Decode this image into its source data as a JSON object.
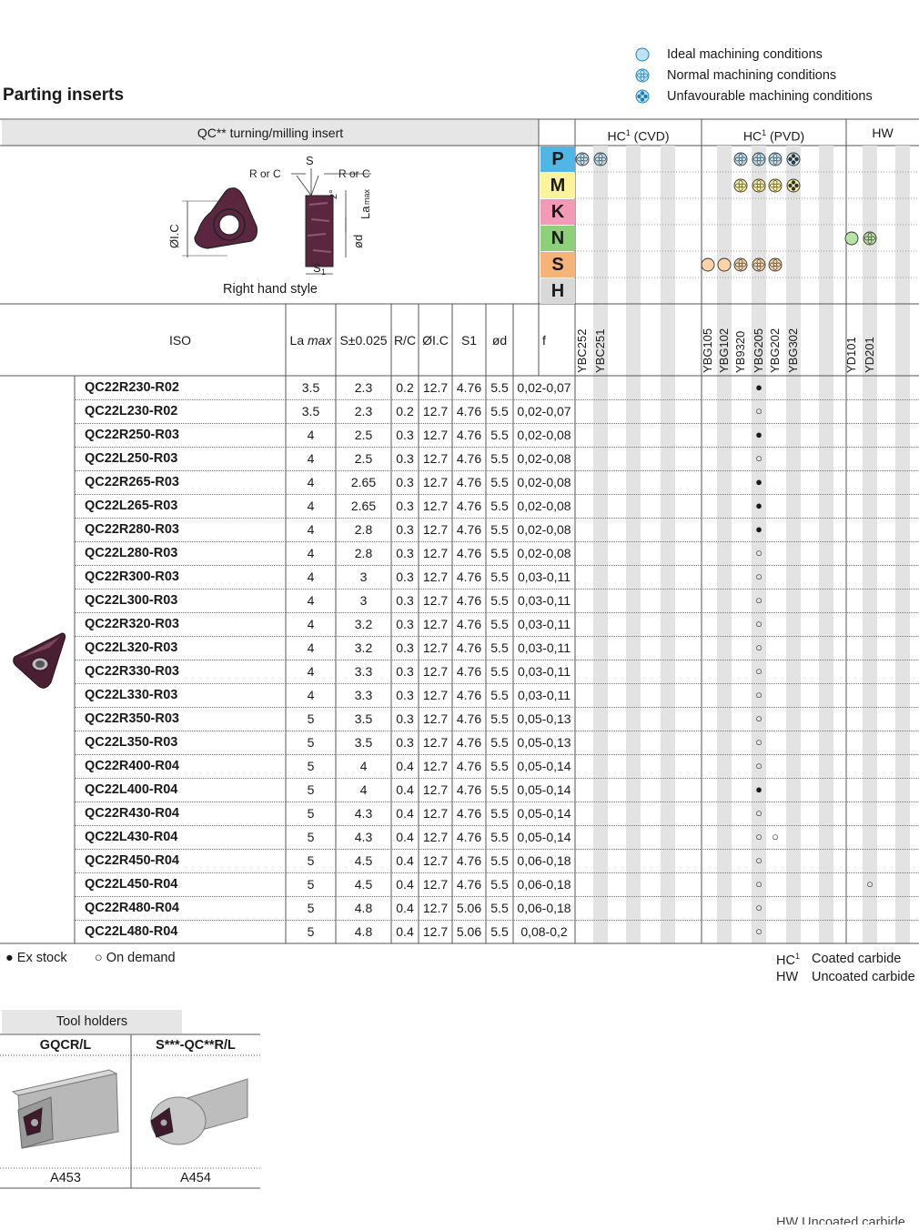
{
  "legend": {
    "ideal": "Ideal machining conditions",
    "normal": "Normal machining conditions",
    "unfavourable": "Unfavourable machining conditions"
  },
  "title": "Parting inserts",
  "insert_header": "QC** turning/milling insert",
  "diagram": {
    "caption": "Right hand style",
    "labels": {
      "s": "S",
      "r_or_c_left": "R or C",
      "r_or_c_right": "R or C",
      "angle": "2°",
      "la": "La",
      "la_sub": "max",
      "od": "ød",
      "ic": "ØI.C",
      "s1": "S",
      "s1_sub": "1"
    }
  },
  "groups": [
    {
      "label": "HC",
      "sup": "1",
      "suffix": " (CVD)"
    },
    {
      "label": "HC",
      "sup": "1",
      "suffix": " (PVD)"
    },
    {
      "label": "HW",
      "sup": "",
      "suffix": ""
    }
  ],
  "materials": [
    {
      "letter": "P",
      "color": "#4fb6e6"
    },
    {
      "letter": "M",
      "color": "#fdf39a"
    },
    {
      "letter": "K",
      "color": "#f49ab7"
    },
    {
      "letter": "N",
      "color": "#8ecf7a"
    },
    {
      "letter": "S",
      "color": "#f5b37a"
    },
    {
      "letter": "H",
      "color": "#d9d9d9"
    }
  ],
  "material_marks": {
    "P": [
      {
        "col": 0,
        "sym": "normal",
        "c": "#bfe3f5"
      },
      {
        "col": 1,
        "sym": "normal",
        "c": "#bfe3f5"
      },
      {
        "col": 9,
        "sym": "normal",
        "c": "#bfe3f5"
      },
      {
        "col": 10,
        "sym": "normal",
        "c": "#bfe3f5"
      },
      {
        "col": 11,
        "sym": "normal",
        "c": "#bfe3f5"
      },
      {
        "col": 12,
        "sym": "unfav",
        "c": "#bfe3f5"
      }
    ],
    "M": [
      {
        "col": 9,
        "sym": "normal",
        "c": "#fdf39a"
      },
      {
        "col": 10,
        "sym": "normal",
        "c": "#fdf39a"
      },
      {
        "col": 11,
        "sym": "normal",
        "c": "#fdf39a"
      },
      {
        "col": 12,
        "sym": "unfav",
        "c": "#fdf39a"
      }
    ],
    "N": [
      {
        "col": 15,
        "sym": "ideal",
        "c": "#b7e3a5"
      },
      {
        "col": 16,
        "sym": "normal",
        "c": "#b7e3a5"
      }
    ],
    "S": [
      {
        "col": 7,
        "sym": "ideal",
        "c": "#fbd3a8"
      },
      {
        "col": 8,
        "sym": "ideal",
        "c": "#fbd3a8"
      },
      {
        "col": 9,
        "sym": "normal",
        "c": "#fbd3a8"
      },
      {
        "col": 10,
        "sym": "normal",
        "c": "#fbd3a8"
      },
      {
        "col": 11,
        "sym": "normal",
        "c": "#fbd3a8"
      }
    ]
  },
  "columns": {
    "iso": "ISO",
    "la": "La ",
    "la_em": "max",
    "s": "S±0.025",
    "rc": "R/C",
    "ic": "ØI.C",
    "s1": "S1",
    "od": "ød",
    "f": "f"
  },
  "grades": {
    "cvd": [
      "YBC252",
      "YBC251"
    ],
    "pvd": [
      "YBG105",
      "YBG102",
      "YB9320",
      "YBG205",
      "YBG202",
      "YBG302"
    ],
    "hw": [
      "YD101",
      "YD201"
    ]
  },
  "rows": [
    {
      "code": "QC22R230-R02",
      "la": "3.5",
      "s": "2.3",
      "rc": "0.2",
      "ic": "12.7",
      "s1": "4.76",
      "od": "5.5",
      "f": "0,02-0,07",
      "marks": [
        {
          "col": 10,
          "v": "●"
        }
      ]
    },
    {
      "code": "QC22L230-R02",
      "la": "3.5",
      "s": "2.3",
      "rc": "0.2",
      "ic": "12.7",
      "s1": "4.76",
      "od": "5.5",
      "f": "0,02-0,07",
      "marks": [
        {
          "col": 10,
          "v": "○"
        }
      ]
    },
    {
      "code": "QC22R250-R03",
      "la": "4",
      "s": "2.5",
      "rc": "0.3",
      "ic": "12.7",
      "s1": "4.76",
      "od": "5.5",
      "f": "0,02-0,08",
      "marks": [
        {
          "col": 10,
          "v": "●"
        }
      ]
    },
    {
      "code": "QC22L250-R03",
      "la": "4",
      "s": "2.5",
      "rc": "0.3",
      "ic": "12.7",
      "s1": "4.76",
      "od": "5.5",
      "f": "0,02-0,08",
      "marks": [
        {
          "col": 10,
          "v": "○"
        }
      ]
    },
    {
      "code": "QC22R265-R03",
      "la": "4",
      "s": "2.65",
      "rc": "0.3",
      "ic": "12.7",
      "s1": "4.76",
      "od": "5.5",
      "f": "0,02-0,08",
      "marks": [
        {
          "col": 10,
          "v": "●"
        }
      ]
    },
    {
      "code": "QC22L265-R03",
      "la": "4",
      "s": "2.65",
      "rc": "0.3",
      "ic": "12.7",
      "s1": "4.76",
      "od": "5.5",
      "f": "0,02-0,08",
      "marks": [
        {
          "col": 10,
          "v": "●"
        }
      ]
    },
    {
      "code": "QC22R280-R03",
      "la": "4",
      "s": "2.8",
      "rc": "0.3",
      "ic": "12.7",
      "s1": "4.76",
      "od": "5.5",
      "f": "0,02-0,08",
      "marks": [
        {
          "col": 10,
          "v": "●"
        }
      ]
    },
    {
      "code": "QC22L280-R03",
      "la": "4",
      "s": "2.8",
      "rc": "0.3",
      "ic": "12.7",
      "s1": "4.76",
      "od": "5.5",
      "f": "0,02-0,08",
      "marks": [
        {
          "col": 10,
          "v": "○"
        }
      ]
    },
    {
      "code": "QC22R300-R03",
      "la": "4",
      "s": "3",
      "rc": "0.3",
      "ic": "12.7",
      "s1": "4.76",
      "od": "5.5",
      "f": "0,03-0,11",
      "marks": [
        {
          "col": 10,
          "v": "○"
        }
      ]
    },
    {
      "code": "QC22L300-R03",
      "la": "4",
      "s": "3",
      "rc": "0.3",
      "ic": "12.7",
      "s1": "4.76",
      "od": "5.5",
      "f": "0,03-0,11",
      "marks": [
        {
          "col": 10,
          "v": "○"
        }
      ]
    },
    {
      "code": "QC22R320-R03",
      "la": "4",
      "s": "3.2",
      "rc": "0.3",
      "ic": "12.7",
      "s1": "4.76",
      "od": "5.5",
      "f": "0,03-0,11",
      "marks": [
        {
          "col": 10,
          "v": "○"
        }
      ]
    },
    {
      "code": "QC22L320-R03",
      "la": "4",
      "s": "3.2",
      "rc": "0.3",
      "ic": "12.7",
      "s1": "4.76",
      "od": "5.5",
      "f": "0,03-0,11",
      "marks": [
        {
          "col": 10,
          "v": "○"
        }
      ]
    },
    {
      "code": "QC22R330-R03",
      "la": "4",
      "s": "3.3",
      "rc": "0.3",
      "ic": "12.7",
      "s1": "4.76",
      "od": "5.5",
      "f": "0,03-0,11",
      "marks": [
        {
          "col": 10,
          "v": "○"
        }
      ]
    },
    {
      "code": "QC22L330-R03",
      "la": "4",
      "s": "3.3",
      "rc": "0.3",
      "ic": "12.7",
      "s1": "4.76",
      "od": "5.5",
      "f": "0,03-0,11",
      "marks": [
        {
          "col": 10,
          "v": "○"
        }
      ]
    },
    {
      "code": "QC22R350-R03",
      "la": "5",
      "s": "3.5",
      "rc": "0.3",
      "ic": "12.7",
      "s1": "4.76",
      "od": "5.5",
      "f": "0,05-0,13",
      "marks": [
        {
          "col": 10,
          "v": "○"
        }
      ]
    },
    {
      "code": "QC22L350-R03",
      "la": "5",
      "s": "3.5",
      "rc": "0.3",
      "ic": "12.7",
      "s1": "4.76",
      "od": "5.5",
      "f": "0,05-0,13",
      "marks": [
        {
          "col": 10,
          "v": "○"
        }
      ]
    },
    {
      "code": "QC22R400-R04",
      "la": "5",
      "s": "4",
      "rc": "0.4",
      "ic": "12.7",
      "s1": "4.76",
      "od": "5.5",
      "f": "0,05-0,14",
      "marks": [
        {
          "col": 10,
          "v": "○"
        }
      ]
    },
    {
      "code": "QC22L400-R04",
      "la": "5",
      "s": "4",
      "rc": "0.4",
      "ic": "12.7",
      "s1": "4.76",
      "od": "5.5",
      "f": "0,05-0,14",
      "marks": [
        {
          "col": 10,
          "v": "●"
        }
      ]
    },
    {
      "code": "QC22R430-R04",
      "la": "5",
      "s": "4.3",
      "rc": "0.4",
      "ic": "12.7",
      "s1": "4.76",
      "od": "5.5",
      "f": "0,05-0,14",
      "marks": [
        {
          "col": 10,
          "v": "○"
        }
      ]
    },
    {
      "code": "QC22L430-R04",
      "la": "5",
      "s": "4.3",
      "rc": "0.4",
      "ic": "12.7",
      "s1": "4.76",
      "od": "5.5",
      "f": "0,05-0,14",
      "marks": [
        {
          "col": 10,
          "v": "○"
        },
        {
          "col": 11,
          "v": "○"
        }
      ]
    },
    {
      "code": "QC22R450-R04",
      "la": "5",
      "s": "4.5",
      "rc": "0.4",
      "ic": "12.7",
      "s1": "4.76",
      "od": "5.5",
      "f": "0,06-0,18",
      "marks": [
        {
          "col": 10,
          "v": "○"
        }
      ]
    },
    {
      "code": "QC22L450-R04",
      "la": "5",
      "s": "4.5",
      "rc": "0.4",
      "ic": "12.7",
      "s1": "4.76",
      "od": "5.5",
      "f": "0,06-0,18",
      "marks": [
        {
          "col": 10,
          "v": "○"
        },
        {
          "col": 16,
          "v": "○"
        }
      ]
    },
    {
      "code": "QC22R480-R04",
      "la": "5",
      "s": "4.8",
      "rc": "0.4",
      "ic": "12.7",
      "s1": "5.06",
      "od": "5.5",
      "f": "0,06-0,18",
      "marks": [
        {
          "col": 10,
          "v": "○"
        }
      ]
    },
    {
      "code": "QC22L480-R04",
      "la": "5",
      "s": "4.8",
      "rc": "0.4",
      "ic": "12.7",
      "s1": "5.06",
      "od": "5.5",
      "f": "0,08-0,2",
      "marks": [
        {
          "col": 10,
          "v": "○"
        }
      ]
    }
  ],
  "footer": {
    "ex_stock": "● Ex stock",
    "on_demand": "○ On demand",
    "hc": "HC",
    "hc_sup": "1",
    "hc_text": "Coated carbide",
    "hw": "HW",
    "hw_text": "Uncoated carbide",
    "hw_ghost": "HW    Uncoated carbide"
  },
  "tool_holders": {
    "title": "Tool holders",
    "items": [
      {
        "name": "GQCR/L",
        "page": "A453"
      },
      {
        "name": "S***-QC**R/L",
        "page": "A454"
      }
    ]
  }
}
